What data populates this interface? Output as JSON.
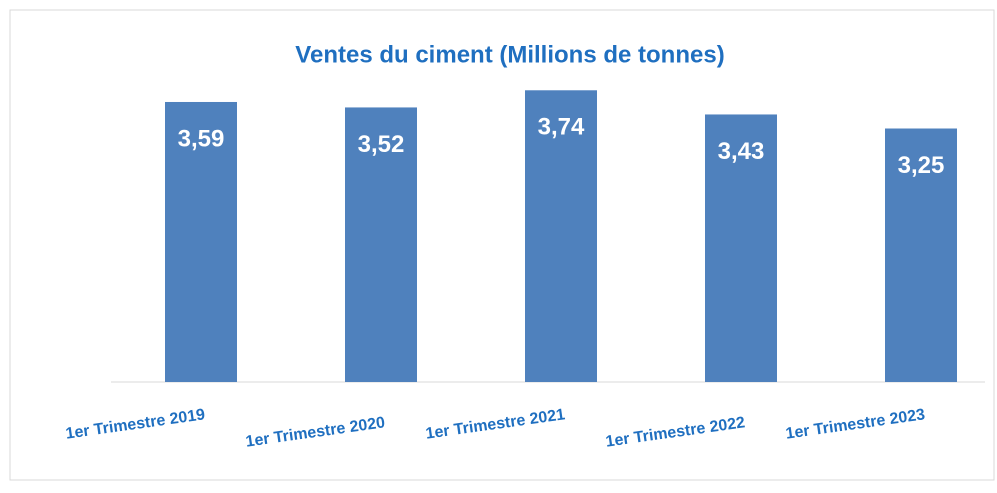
{
  "chart_data": {
    "type": "bar",
    "title": "Ventes du ciment (Millions de tonnes)",
    "categories": [
      "1er Trimestre 2019",
      "1er Trimestre 2020",
      "1er Trimestre 2021",
      "1er Trimestre 2022",
      "1er Trimestre 2023"
    ],
    "values": [
      3.59,
      3.52,
      3.74,
      3.43,
      3.25
    ],
    "value_labels": [
      "3,59",
      "3,52",
      "3,74",
      "3,43",
      "3,25"
    ],
    "color": "#4f81bd",
    "ylim": [
      0,
      4
    ]
  }
}
